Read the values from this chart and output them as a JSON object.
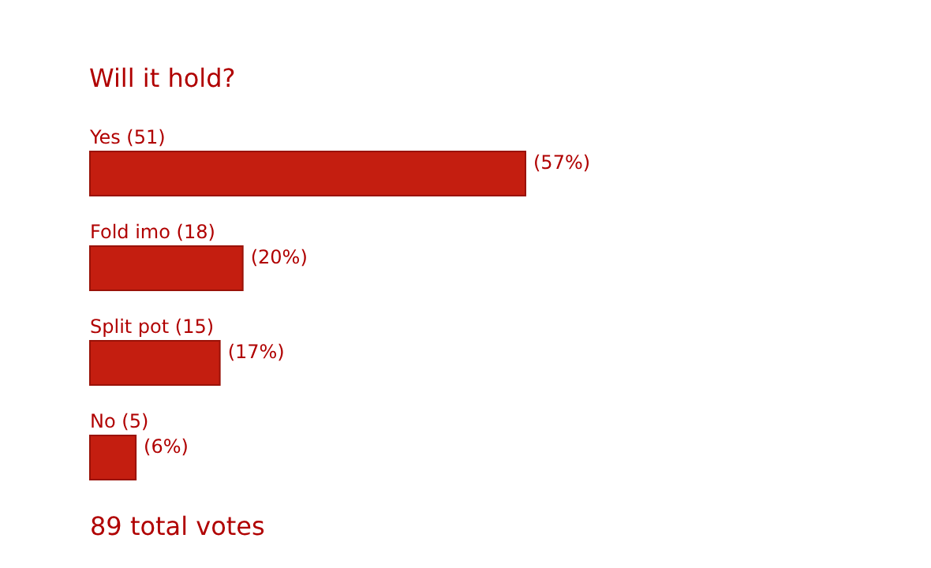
{
  "chart_data": {
    "type": "bar",
    "orientation": "horizontal",
    "title": "Will it hold?",
    "categories": [
      "Yes (51)",
      "Fold imo (18)",
      "Split pot (15)",
      "No (5)"
    ],
    "values": [
      57,
      20,
      17,
      6
    ],
    "value_labels": [
      "(57%)",
      "(20%)",
      "(17%)",
      "(6%)"
    ],
    "color": "#c41e10",
    "annotations": [
      "89 total votes"
    ]
  }
}
